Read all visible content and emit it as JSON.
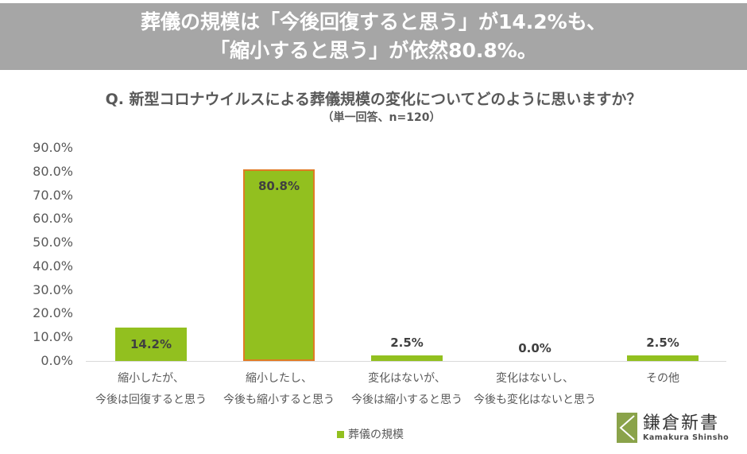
{
  "header": {
    "line1": "葬儀の規模は「今後回復すると思う」が14.2%も、",
    "line2": "「縮小すると思う」が依然80.8%。",
    "background": "#a6a6a6"
  },
  "question": {
    "title": "Q. 新型コロナウイルスによる葬儀規模の変化についてどのように思いますか？",
    "note": "（単一回答、n=120）"
  },
  "chart_data": {
    "type": "bar",
    "title": "Q. 新型コロナウイルスによる葬儀規模の変化についてどのように思いますか？",
    "subtitle": "（単一回答、n=120）",
    "categories": [
      "縮小したが、今後は回復すると思う",
      "縮小したし、今後も縮小すると思う",
      "変化はないが、今後は縮小すると思う",
      "変化はないし、今後も変化はないと思う",
      "その他"
    ],
    "series": [
      {
        "name": "葬儀の規模",
        "values": [
          14.2,
          80.8,
          2.5,
          0.0,
          2.5
        ],
        "color": "#92c01f"
      }
    ],
    "value_labels": [
      "14.2%",
      "80.8%",
      "2.5%",
      "0.0%",
      "2.5%"
    ],
    "highlighted_index": 1,
    "highlight_border_color": "#e07b24",
    "xlabel": "",
    "ylabel": "",
    "ylim": [
      0,
      90
    ],
    "yticks": [
      "0.0%",
      "10.0%",
      "20.0%",
      "30.0%",
      "40.0%",
      "50.0%",
      "60.0%",
      "70.0%",
      "80.0%",
      "90.0%"
    ],
    "grid": false,
    "legend_position": "bottom"
  },
  "axis": {
    "categories_line1": [
      "縮小したが、",
      "縮小したし、",
      "変化はないが、",
      "変化はないし、",
      "その他"
    ],
    "categories_line2": [
      "今後は回復すると思う",
      "今後も縮小すると思う",
      "今後は縮小すると思う",
      "今後も変化はないと思う",
      ""
    ]
  },
  "legend": {
    "label": "葬儀の規模"
  },
  "logo": {
    "name_jp": "鎌倉新書",
    "name_en": "Kamakura Shinsho",
    "color": "#8aa34a"
  }
}
